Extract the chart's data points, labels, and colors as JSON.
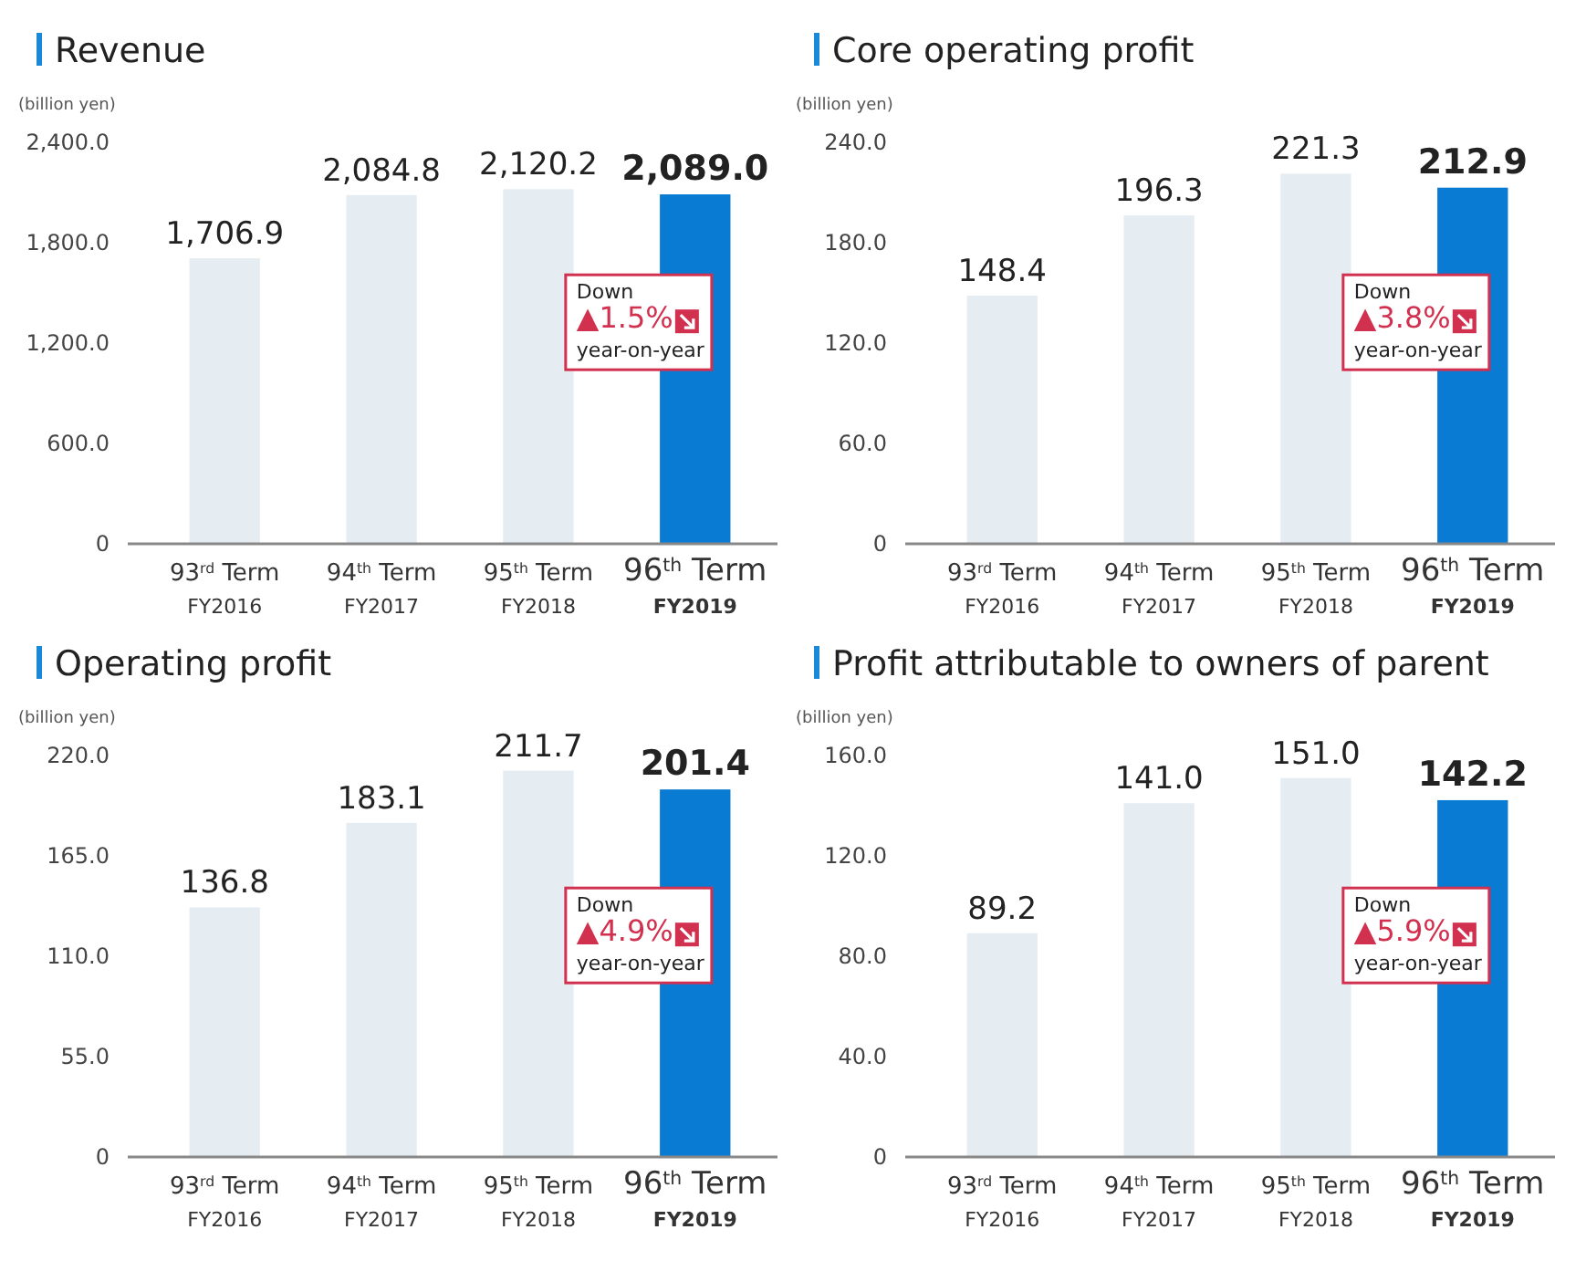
{
  "chart_data": [
    {
      "type": "bar",
      "title": "Revenue",
      "ylabel": "(billion yen)",
      "categories": [
        "93$^{rd}$ Term\nFY2016",
        "94$^{th}$ Term\nFY2017",
        "95$^{th}$ Term\nFY2018",
        "96$^{th}$ Term\nFY2019"
      ],
      "values": [
        1706.9,
        2084.8,
        2120.2,
        2089.0
      ],
      "value_labels": [
        "1,706.9",
        "2,084.8",
        "2,120.2",
        "2,089.0"
      ],
      "colors": [
        "#e6edf2",
        "#e6edf2",
        "#e6edf2",
        "#0a7bd2"
      ],
      "ylim": [
        0,
        2400
      ],
      "yticks": [
        {
          "value": 0,
          "label": "0"
        },
        {
          "value": 600,
          "label": "600.0"
        },
        {
          "value": 1200,
          "label": "1,200.0"
        },
        {
          "value": 1800,
          "label": "1,800.0"
        },
        {
          "value": 2400,
          "label": "2,400.0"
        }
      ],
      "annotations": [
        "Down\n▲1.5%\nyear-on-year"
      ]
    },
    {
      "type": "bar",
      "title": "Core operating profit",
      "ylabel": "(billion yen)",
      "categories": [
        "93$^{rd}$ Term\nFY2016",
        "94$^{th}$ Term\nFY2017",
        "95$^{th}$ Term\nFY2018",
        "96$^{th}$ Term\nFY2019"
      ],
      "values": [
        148.4,
        196.3,
        221.3,
        212.9
      ],
      "value_labels": [
        "148.4",
        "196.3",
        "221.3",
        "212.9"
      ],
      "colors": [
        "#e6edf2",
        "#e6edf2",
        "#e6edf2",
        "#0a7bd2"
      ],
      "ylim": [
        0,
        240
      ],
      "yticks": [
        {
          "value": 0,
          "label": "0"
        },
        {
          "value": 60,
          "label": "60.0"
        },
        {
          "value": 120,
          "label": "120.0"
        },
        {
          "value": 180,
          "label": "180.0"
        },
        {
          "value": 240,
          "label": "240.0"
        }
      ],
      "annotations": [
        "Down\n▲3.8%\nyear-on-year"
      ]
    },
    {
      "type": "bar",
      "title": "Operating profit",
      "ylabel": "(billion yen)",
      "categories": [
        "93$^{rd}$ Term\nFY2016",
        "94$^{th}$ Term\nFY2017",
        "95$^{th}$ Term\nFY2018",
        "96$^{th}$ Term\nFY2019"
      ],
      "values": [
        136.8,
        183.1,
        211.7,
        201.4
      ],
      "value_labels": [
        "136.8",
        "183.1",
        "211.7",
        "201.4"
      ],
      "colors": [
        "#e6edf2",
        "#e6edf2",
        "#e6edf2",
        "#0a7bd2"
      ],
      "ylim": [
        0,
        220
      ],
      "yticks": [
        {
          "value": 0,
          "label": "0"
        },
        {
          "value": 55,
          "label": "55.0"
        },
        {
          "value": 110,
          "label": "110.0"
        },
        {
          "value": 165,
          "label": "165.0"
        },
        {
          "value": 220,
          "label": "220.0"
        }
      ],
      "annotations": [
        "Down\n▲4.9%\nyear-on-year"
      ]
    },
    {
      "type": "bar",
      "title": "Profit attributable to owners of parent",
      "ylabel": "(billion yen)",
      "categories": [
        "93$^{rd}$ Term\nFY2016",
        "94$^{th}$ Term\nFY2017",
        "95$^{th}$ Term\nFY2018",
        "96$^{th}$ Term\nFY2019"
      ],
      "values": [
        89.2,
        141.0,
        151.0,
        142.2
      ],
      "value_labels": [
        "89.2",
        "141.0",
        "151.0",
        "142.2"
      ],
      "colors": [
        "#e6edf2",
        "#e6edf2",
        "#e6edf2",
        "#0a7bd2"
      ],
      "ylim": [
        0,
        160
      ],
      "yticks": [
        {
          "value": 0,
          "label": "0"
        },
        {
          "value": 40,
          "label": "40.0"
        },
        {
          "value": 80,
          "label": "80.0"
        },
        {
          "value": 120,
          "label": "120.0"
        },
        {
          "value": 160,
          "label": "160.0"
        }
      ],
      "annotations": [
        "Down\n▲5.9%\nyear-on-year"
      ]
    }
  ]
}
